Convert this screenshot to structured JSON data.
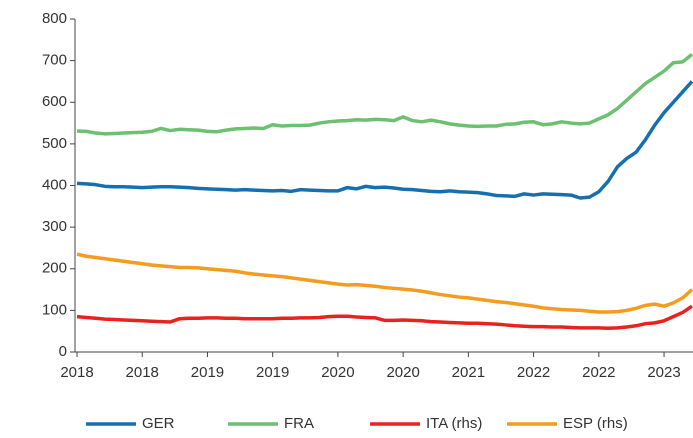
{
  "chart_data": {
    "type": "line",
    "categories": [
      "2018",
      null,
      null,
      null,
      null,
      null,
      null,
      "2018",
      null,
      null,
      null,
      null,
      null,
      null,
      "2019",
      null,
      null,
      null,
      null,
      null,
      null,
      "2019",
      null,
      null,
      null,
      null,
      null,
      null,
      "2020",
      null,
      null,
      null,
      null,
      null,
      null,
      "2020",
      null,
      null,
      null,
      null,
      null,
      null,
      "2021",
      null,
      null,
      null,
      null,
      null,
      null,
      "2022",
      null,
      null,
      null,
      null,
      null,
      null,
      "2022",
      null,
      null,
      null,
      null,
      null,
      null,
      "2023",
      null,
      null,
      null
    ],
    "series": [
      {
        "name": "GER",
        "color": "#1670b0",
        "values": [
          405,
          404,
          402,
          398,
          397,
          397,
          396,
          395,
          396,
          397,
          397,
          396,
          395,
          393,
          392,
          391,
          390,
          389,
          390,
          389,
          388,
          387,
          388,
          386,
          390,
          389,
          388,
          387,
          387,
          395,
          392,
          398,
          395,
          396,
          394,
          391,
          390,
          388,
          386,
          385,
          387,
          385,
          384,
          383,
          380,
          376,
          375,
          374,
          380,
          377,
          380,
          379,
          378,
          377,
          370,
          372,
          385,
          410,
          445,
          465,
          480,
          510,
          545,
          575,
          600,
          625,
          650
        ]
      },
      {
        "name": "FRA",
        "color": "#6cc070",
        "values": [
          531,
          530,
          526,
          524,
          525,
          526,
          527,
          528,
          530,
          537,
          532,
          535,
          534,
          533,
          530,
          529,
          533,
          536,
          537,
          538,
          537,
          546,
          543,
          544,
          544,
          545,
          550,
          553,
          555,
          556,
          558,
          557,
          559,
          558,
          556,
          565,
          556,
          553,
          557,
          553,
          548,
          545,
          543,
          542,
          543,
          543,
          547,
          548,
          552,
          553,
          546,
          548,
          553,
          550,
          548,
          550,
          560,
          570,
          585,
          605,
          625,
          645,
          660,
          675,
          695,
          697,
          715
        ]
      },
      {
        "name": "ITA (rhs)",
        "color": "#e8231e",
        "values": [
          85,
          83,
          81,
          79,
          78,
          77,
          76,
          75,
          74,
          73,
          72,
          80,
          81,
          81,
          82,
          82,
          81,
          81,
          80,
          80,
          80,
          80,
          81,
          81,
          82,
          82,
          83,
          85,
          86,
          86,
          84,
          83,
          82,
          76,
          76,
          77,
          76,
          75,
          73,
          72,
          71,
          70,
          69,
          69,
          68,
          67,
          65,
          63,
          62,
          61,
          61,
          60,
          60,
          59,
          58,
          58,
          58,
          57,
          58,
          60,
          63,
          68,
          70,
          75,
          85,
          95,
          110
        ]
      },
      {
        "name": "ESP (rhs)",
        "color": "#f39c1f",
        "values": [
          235,
          230,
          227,
          224,
          221,
          218,
          215,
          212,
          209,
          207,
          205,
          203,
          203,
          202,
          200,
          198,
          196,
          194,
          190,
          187,
          185,
          183,
          181,
          178,
          175,
          172,
          169,
          166,
          163,
          161,
          162,
          160,
          158,
          155,
          153,
          151,
          149,
          146,
          142,
          138,
          135,
          132,
          130,
          127,
          124,
          121,
          119,
          116,
          113,
          110,
          106,
          104,
          102,
          101,
          100,
          98,
          96,
          96,
          97,
          100,
          105,
          112,
          115,
          110,
          118,
          130,
          150
        ]
      }
    ],
    "ylim": [
      0,
      800
    ],
    "yticks": [
      0,
      100,
      200,
      300,
      400,
      500,
      600,
      700,
      800
    ],
    "grid": false,
    "legend": "bottom"
  }
}
